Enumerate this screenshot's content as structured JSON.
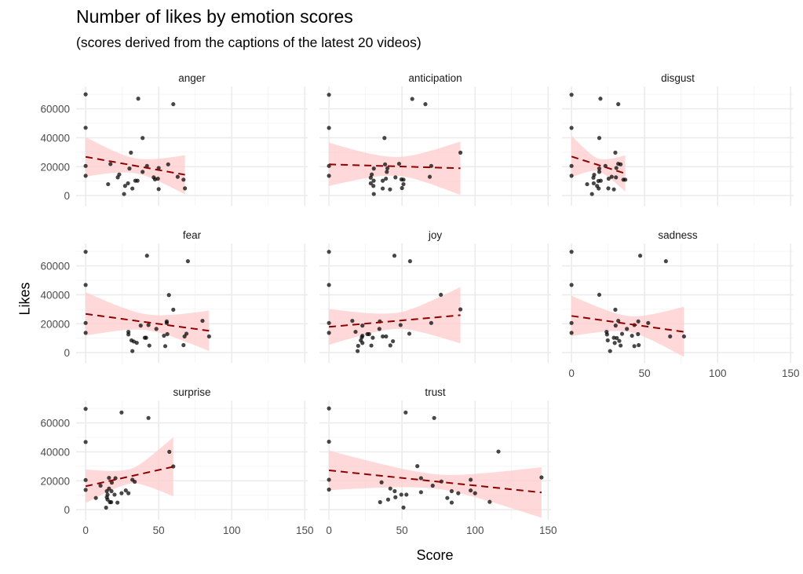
{
  "chart_data": {
    "type": "scatter",
    "title": "Number of likes by emotion scores",
    "subtitle": "(scores derived from the captions of the latest 20 videos)",
    "xlabel": "Score",
    "ylabel": "Likes",
    "xlim": [
      -6.5,
      152
    ],
    "ylim": [
      -7000,
      75500
    ],
    "xticks": [
      0,
      50,
      100,
      150
    ],
    "yticks": [
      0,
      20000,
      40000,
      60000
    ],
    "grid": true,
    "colors": {
      "points": "#000000",
      "trend": "#8b0000",
      "band": "#ffcccc",
      "grid": "#ebebeb"
    },
    "panels": [
      {
        "label": "anger",
        "points": [
          [
            0,
            70000
          ],
          [
            0,
            46900
          ],
          [
            0,
            20500
          ],
          [
            0,
            13700
          ],
          [
            36,
            67000
          ],
          [
            60,
            63200
          ],
          [
            39,
            39800
          ],
          [
            31,
            29700
          ],
          [
            17,
            21800
          ],
          [
            42,
            20500
          ],
          [
            50,
            19100
          ],
          [
            56.5,
            21600
          ],
          [
            30,
            18700
          ],
          [
            39,
            16400
          ],
          [
            23,
            14600
          ],
          [
            22,
            12600
          ],
          [
            46.6,
            12600
          ],
          [
            47.5,
            11200
          ],
          [
            49.5,
            11700
          ],
          [
            63,
            13000
          ],
          [
            67,
            11000
          ],
          [
            15.4,
            7900
          ],
          [
            29,
            8500
          ],
          [
            27,
            6700
          ],
          [
            34,
            10300
          ],
          [
            35.5,
            10300
          ],
          [
            32,
            4900
          ],
          [
            50,
            4500
          ],
          [
            68,
            5000
          ],
          [
            26.3,
            1100
          ]
        ],
        "trend": [
          [
            0,
            26800
          ],
          [
            68,
            14400
          ]
        ],
        "band_halfwidth": [
          13700,
          5200,
          13500
        ]
      },
      {
        "label": "anticipation",
        "points": [
          [
            0,
            69700
          ],
          [
            0,
            46800
          ],
          [
            0,
            20500
          ],
          [
            0,
            13700
          ],
          [
            57,
            66800
          ],
          [
            66,
            63200
          ],
          [
            38,
            39800
          ],
          [
            90,
            29700
          ],
          [
            38.4,
            21600
          ],
          [
            48,
            22000
          ],
          [
            70,
            20500
          ],
          [
            30.7,
            18700
          ],
          [
            40,
            18900
          ],
          [
            39.6,
            16400
          ],
          [
            29.3,
            14600
          ],
          [
            69,
            13000
          ],
          [
            45.5,
            12600
          ],
          [
            28.6,
            12400
          ],
          [
            39,
            11700
          ],
          [
            36.8,
            10300
          ],
          [
            30.6,
            10300
          ],
          [
            49.6,
            11200
          ],
          [
            51,
            11000
          ],
          [
            28.6,
            8500
          ],
          [
            30.4,
            6700
          ],
          [
            51,
            7900
          ],
          [
            36.8,
            4900
          ],
          [
            41.8,
            4300
          ],
          [
            50,
            5200
          ],
          [
            30.7,
            1100
          ]
        ],
        "trend": [
          [
            0,
            21600
          ],
          [
            90,
            18900
          ]
        ],
        "band_halfwidth": [
          15000,
          6500,
          18500
        ]
      },
      {
        "label": "disgust",
        "points": [
          [
            0,
            69700
          ],
          [
            0,
            46800
          ],
          [
            0,
            20500
          ],
          [
            0,
            13700
          ],
          [
            19.8,
            67000
          ],
          [
            32,
            63200
          ],
          [
            19,
            39800
          ],
          [
            30,
            29700
          ],
          [
            23.2,
            20500
          ],
          [
            32,
            22000
          ],
          [
            33.6,
            21600
          ],
          [
            30.7,
            19100
          ],
          [
            19,
            18700
          ],
          [
            19,
            16400
          ],
          [
            15.5,
            14400
          ],
          [
            15,
            12400
          ],
          [
            27.5,
            13000
          ],
          [
            30.4,
            12600
          ],
          [
            25.4,
            11700
          ],
          [
            35.5,
            11000
          ],
          [
            36.8,
            11000
          ],
          [
            20,
            10300
          ],
          [
            18.4,
            10100
          ],
          [
            10.7,
            7900
          ],
          [
            15.2,
            8500
          ],
          [
            17.5,
            6700
          ],
          [
            18.6,
            4900
          ],
          [
            25.2,
            5000
          ],
          [
            29,
            4300
          ],
          [
            14,
            1100
          ]
        ],
        "trend": [
          [
            0,
            27000
          ],
          [
            36.8,
            15300
          ]
        ],
        "band_halfwidth": [
          14400,
          4500,
          12500
        ]
      },
      {
        "label": "fear",
        "points": [
          [
            0,
            69700
          ],
          [
            0,
            46800
          ],
          [
            0,
            20500
          ],
          [
            0,
            13700
          ],
          [
            42,
            67000
          ],
          [
            70,
            63200
          ],
          [
            57,
            39800
          ],
          [
            60,
            29700
          ],
          [
            80,
            22000
          ],
          [
            55.5,
            21600
          ],
          [
            55.5,
            20500
          ],
          [
            43,
            19100
          ],
          [
            37.7,
            18700
          ],
          [
            48.4,
            16400
          ],
          [
            29.3,
            14400
          ],
          [
            29.3,
            12600
          ],
          [
            69,
            13100
          ],
          [
            55.9,
            12800
          ],
          [
            53.6,
            11700
          ],
          [
            67.7,
            11200
          ],
          [
            84.5,
            11200
          ],
          [
            41.4,
            10300
          ],
          [
            40.5,
            10300
          ],
          [
            31.4,
            8500
          ],
          [
            33,
            7700
          ],
          [
            35,
            6800
          ],
          [
            43.6,
            4900
          ],
          [
            54.5,
            4500
          ],
          [
            67,
            5200
          ],
          [
            32,
            1100
          ]
        ],
        "trend": [
          [
            0,
            26800
          ],
          [
            84.5,
            15100
          ]
        ],
        "band_halfwidth": [
          15000,
          5500,
          14000
        ]
      },
      {
        "label": "joy",
        "points": [
          [
            0,
            69700
          ],
          [
            0,
            46800
          ],
          [
            0,
            20500
          ],
          [
            0,
            13700
          ],
          [
            44.8,
            67000
          ],
          [
            55.5,
            63200
          ],
          [
            76.6,
            40000
          ],
          [
            90,
            29900
          ],
          [
            16,
            22000
          ],
          [
            34.8,
            21600
          ],
          [
            70,
            20500
          ],
          [
            49,
            19100
          ],
          [
            22.9,
            18700
          ],
          [
            34.5,
            16400
          ],
          [
            18.2,
            14400
          ],
          [
            55,
            13100
          ],
          [
            26.3,
            12800
          ],
          [
            27.5,
            12800
          ],
          [
            22.9,
            11700
          ],
          [
            30,
            10300
          ],
          [
            22.5,
            10600
          ],
          [
            36.8,
            11200
          ],
          [
            39.1,
            11200
          ],
          [
            21.8,
            8500
          ],
          [
            22.9,
            6700
          ],
          [
            43.8,
            7900
          ],
          [
            29,
            4900
          ],
          [
            42,
            5000
          ],
          [
            20,
            4700
          ],
          [
            19.6,
            1100
          ]
        ],
        "trend": [
          [
            0,
            17800
          ],
          [
            90,
            25900
          ]
        ],
        "band_halfwidth": [
          12400,
          5500,
          19500
        ]
      },
      {
        "label": "sadness",
        "points": [
          [
            0,
            69700
          ],
          [
            0,
            46800
          ],
          [
            0,
            20500
          ],
          [
            0,
            13700
          ],
          [
            47,
            67000
          ],
          [
            64.6,
            63200
          ],
          [
            19,
            40000
          ],
          [
            30,
            29700
          ],
          [
            32,
            22000
          ],
          [
            45.7,
            21600
          ],
          [
            52.5,
            20500
          ],
          [
            43,
            19100
          ],
          [
            30.2,
            18700
          ],
          [
            37.9,
            16400
          ],
          [
            24,
            14400
          ],
          [
            24.3,
            12600
          ],
          [
            34.6,
            13000
          ],
          [
            45.5,
            12800
          ],
          [
            41.4,
            11700
          ],
          [
            67.5,
            11200
          ],
          [
            77,
            11200
          ],
          [
            29,
            10300
          ],
          [
            31,
            10100
          ],
          [
            24.8,
            8500
          ],
          [
            32.7,
            8100
          ],
          [
            29.6,
            6700
          ],
          [
            33.6,
            4900
          ],
          [
            43,
            4500
          ],
          [
            46,
            5200
          ],
          [
            26.4,
            1100
          ]
        ],
        "trend": [
          [
            0,
            25400
          ],
          [
            77,
            14400
          ]
        ],
        "band_halfwidth": [
          14000,
          5500,
          17400
        ]
      },
      {
        "label": "surprise",
        "points": [
          [
            0,
            69700
          ],
          [
            0,
            46800
          ],
          [
            0,
            20500
          ],
          [
            0,
            13700
          ],
          [
            24.6,
            67200
          ],
          [
            43,
            63400
          ],
          [
            57.3,
            40000
          ],
          [
            60,
            29900
          ],
          [
            16,
            22000
          ],
          [
            20.4,
            21800
          ],
          [
            32,
            20700
          ],
          [
            33.6,
            19300
          ],
          [
            17.9,
            18700
          ],
          [
            10.2,
            16600
          ],
          [
            16,
            14600
          ],
          [
            14.5,
            12800
          ],
          [
            17.7,
            12800
          ],
          [
            27.5,
            13300
          ],
          [
            29.3,
            11400
          ],
          [
            24.6,
            11400
          ],
          [
            19.8,
            10400
          ],
          [
            15,
            10400
          ],
          [
            14.5,
            8600
          ],
          [
            7,
            8100
          ],
          [
            15,
            7000
          ],
          [
            17.5,
            5200
          ],
          [
            16.6,
            5200
          ],
          [
            21.8,
            4900
          ],
          [
            14,
            1400
          ]
        ],
        "trend": [
          [
            0,
            16200
          ],
          [
            60,
            29700
          ]
        ],
        "band_halfwidth": [
          11700,
          5000,
          20400
        ]
      },
      {
        "label": "trust",
        "points": [
          [
            0,
            70000
          ],
          [
            0,
            47000
          ],
          [
            0,
            20700
          ],
          [
            0,
            13900
          ],
          [
            52.5,
            67200
          ],
          [
            72,
            63400
          ],
          [
            116,
            40200
          ],
          [
            60.5,
            30100
          ],
          [
            63,
            21800
          ],
          [
            36,
            18900
          ],
          [
            77,
            19500
          ],
          [
            97,
            20700
          ],
          [
            145.5,
            22300
          ],
          [
            71,
            16600
          ],
          [
            42,
            14600
          ],
          [
            45,
            12800
          ],
          [
            97,
            13300
          ],
          [
            84,
            12800
          ],
          [
            63,
            12100
          ],
          [
            100,
            11400
          ],
          [
            88.5,
            11400
          ],
          [
            49.5,
            10400
          ],
          [
            53,
            10400
          ],
          [
            45.5,
            8600
          ],
          [
            81,
            8100
          ],
          [
            40.5,
            7000
          ],
          [
            35,
            5200
          ],
          [
            84,
            4900
          ],
          [
            110,
            5400
          ],
          [
            51,
            1500
          ]
        ],
        "trend": [
          [
            0,
            27200
          ],
          [
            145.5,
            11900
          ]
        ],
        "band_halfwidth": [
          13700,
          5000,
          17500
        ]
      }
    ]
  }
}
